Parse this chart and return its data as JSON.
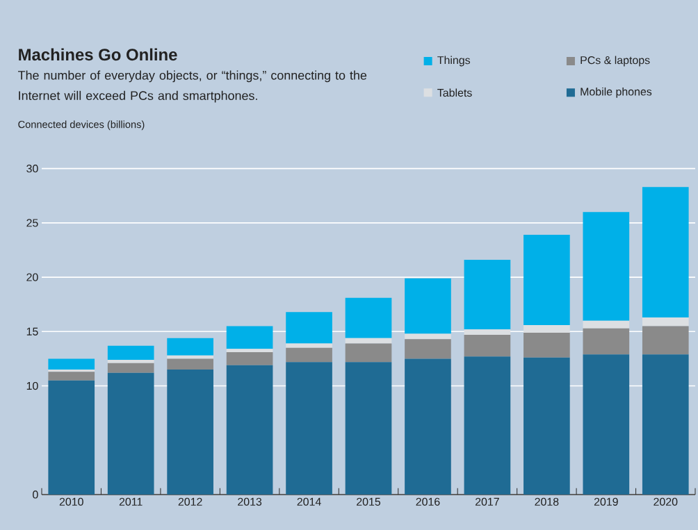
{
  "chart_data": {
    "type": "bar",
    "stacked": true,
    "title": "Machines Go Online",
    "subtitle": "The number of everyday objects, or “things,” connecting to the Internet will exceed PCs and smartphones.",
    "ylabel": "Connected devices (billions)",
    "categories": [
      "2010",
      "2011",
      "2012",
      "2013",
      "2014",
      "2015",
      "2016",
      "2017",
      "2018",
      "2019",
      "2020"
    ],
    "series": [
      {
        "name": "Mobile phones",
        "color": "#1f6b94",
        "values": [
          10.5,
          11.2,
          11.5,
          11.9,
          12.2,
          12.2,
          12.5,
          12.7,
          12.6,
          12.9,
          12.9
        ]
      },
      {
        "name": "PCs & laptops",
        "color": "#8a8a8a",
        "values": [
          0.8,
          0.9,
          1.0,
          1.2,
          1.3,
          1.7,
          1.8,
          2.0,
          2.3,
          2.4,
          2.6
        ]
      },
      {
        "name": "Tablets",
        "color": "#dcdfe2",
        "values": [
          0.2,
          0.3,
          0.3,
          0.3,
          0.4,
          0.5,
          0.5,
          0.5,
          0.7,
          0.7,
          0.8
        ]
      },
      {
        "name": "Things",
        "color": "#00b0e8",
        "values": [
          1.0,
          1.3,
          1.6,
          2.1,
          2.9,
          3.7,
          5.1,
          6.4,
          8.3,
          10.0,
          12.0
        ]
      }
    ],
    "ylim": [
      0,
      30
    ],
    "yticks": [
      0,
      10,
      15,
      20,
      25,
      30
    ],
    "grid": "y",
    "legend": "top right"
  }
}
